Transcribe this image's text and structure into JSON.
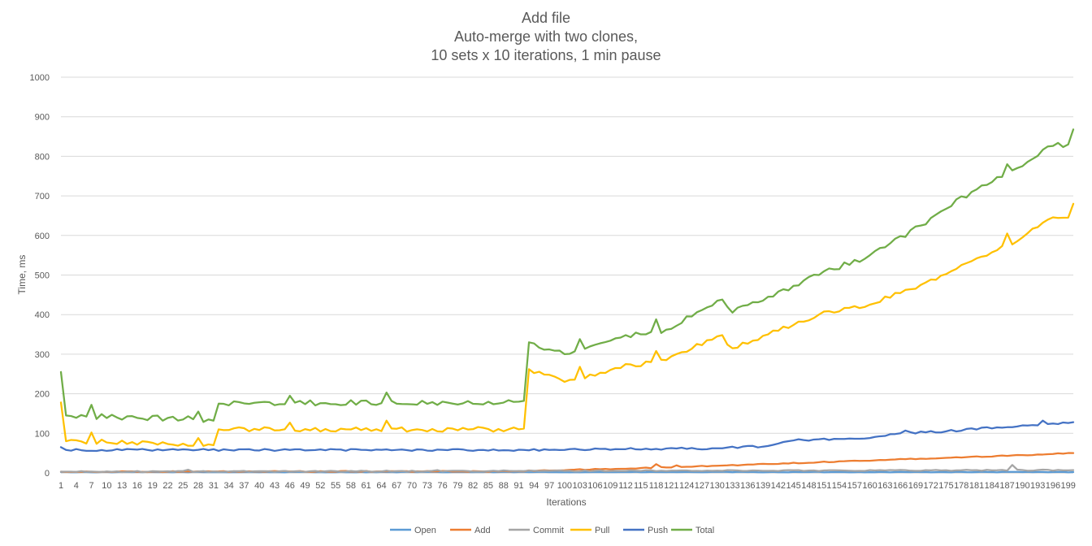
{
  "chart_data": {
    "type": "line",
    "title": "Add file",
    "subtitle_lines": [
      "Auto-merge with two clones,",
      "10 sets x 10 iterations, 1 min pause"
    ],
    "xlabel": "Iterations",
    "ylabel": "Time, ms",
    "ylim": [
      0,
      1000
    ],
    "yticks": [
      0,
      100,
      200,
      300,
      400,
      500,
      600,
      700,
      800,
      900,
      1000
    ],
    "x_start": 1,
    "x_end": 200,
    "x_tick_labels": [
      1,
      4,
      7,
      10,
      13,
      16,
      19,
      22,
      25,
      28,
      31,
      34,
      37,
      40,
      43,
      46,
      49,
      52,
      55,
      58,
      61,
      64,
      67,
      70,
      73,
      76,
      79,
      82,
      85,
      88,
      91,
      94,
      97,
      100,
      103,
      106,
      109,
      112,
      115,
      118,
      121,
      124,
      127,
      130,
      133,
      136,
      139,
      142,
      145,
      148,
      151,
      154,
      157,
      160,
      163,
      166,
      169,
      172,
      175,
      178,
      181,
      184,
      187,
      190,
      193,
      196,
      199
    ],
    "grid": true,
    "legend_position": "bottom",
    "series": [
      {
        "name": "Open",
        "color": "#5b9bd5",
        "anchors": [
          [
            1,
            2
          ],
          [
            200,
            2
          ]
        ],
        "noise": 0.8
      },
      {
        "name": "Add",
        "color": "#ed7d31",
        "anchors": [
          [
            1,
            3
          ],
          [
            90,
            4
          ],
          [
            95,
            6
          ],
          [
            110,
            10
          ],
          [
            130,
            18
          ],
          [
            150,
            27
          ],
          [
            170,
            36
          ],
          [
            190,
            45
          ],
          [
            200,
            50
          ]
        ],
        "noise": 1.2,
        "spikes": [
          [
            118,
            22
          ],
          [
            122,
            19
          ]
        ]
      },
      {
        "name": "Commit",
        "color": "#a5a5a5",
        "anchors": [
          [
            1,
            3
          ],
          [
            200,
            7
          ]
        ],
        "noise": 1.4,
        "spikes": [
          [
            26,
            8
          ],
          [
            75,
            7
          ],
          [
            188,
            20
          ]
        ]
      },
      {
        "name": "Pull",
        "color": "#ffc000",
        "anchors": [
          [
            1,
            178
          ],
          [
            2,
            80
          ],
          [
            30,
            72
          ],
          [
            31,
            70
          ],
          [
            32,
            110
          ],
          [
            91,
            110
          ],
          [
            92,
            112
          ],
          [
            93,
            262
          ],
          [
            100,
            230
          ],
          [
            110,
            265
          ],
          [
            120,
            285
          ],
          [
            130,
            345
          ],
          [
            133,
            315
          ],
          [
            140,
            350
          ],
          [
            150,
            400
          ],
          [
            160,
            425
          ],
          [
            170,
            475
          ],
          [
            180,
            535
          ],
          [
            190,
            595
          ],
          [
            195,
            640
          ],
          [
            199,
            645
          ],
          [
            200,
            680
          ]
        ],
        "noise": 6,
        "spikes": [
          [
            7,
            102
          ],
          [
            28,
            88
          ],
          [
            46,
            127
          ],
          [
            65,
            132
          ],
          [
            103,
            268
          ],
          [
            118,
            308
          ],
          [
            131,
            348
          ],
          [
            187,
            605
          ]
        ]
      },
      {
        "name": "Push",
        "color": "#4472c4",
        "anchors": [
          [
            1,
            65
          ],
          [
            2,
            58
          ],
          [
            92,
            58
          ],
          [
            100,
            58
          ],
          [
            110,
            60
          ],
          [
            130,
            62
          ],
          [
            140,
            68
          ],
          [
            145,
            82
          ],
          [
            150,
            85
          ],
          [
            160,
            88
          ],
          [
            166,
            100
          ],
          [
            175,
            105
          ],
          [
            185,
            115
          ],
          [
            190,
            120
          ],
          [
            200,
            128
          ]
        ],
        "noise": 2.5,
        "spikes": [
          [
            167,
            107
          ],
          [
            194,
            132
          ]
        ]
      },
      {
        "name": "Total",
        "color": "#70ad47",
        "anchors": [
          [
            1,
            255
          ],
          [
            2,
            145
          ],
          [
            30,
            135
          ],
          [
            31,
            132
          ],
          [
            32,
            175
          ],
          [
            91,
            180
          ],
          [
            92,
            182
          ],
          [
            93,
            330
          ],
          [
            100,
            300
          ],
          [
            110,
            340
          ],
          [
            120,
            362
          ],
          [
            130,
            435
          ],
          [
            133,
            405
          ],
          [
            140,
            445
          ],
          [
            150,
            500
          ],
          [
            160,
            550
          ],
          [
            170,
            625
          ],
          [
            180,
            710
          ],
          [
            190,
            775
          ],
          [
            195,
            825
          ],
          [
            199,
            830
          ],
          [
            200,
            868
          ]
        ],
        "noise": 7,
        "spikes": [
          [
            7,
            172
          ],
          [
            28,
            155
          ],
          [
            46,
            195
          ],
          [
            65,
            203
          ],
          [
            103,
            338
          ],
          [
            118,
            388
          ],
          [
            131,
            438
          ],
          [
            187,
            780
          ]
        ]
      }
    ]
  }
}
